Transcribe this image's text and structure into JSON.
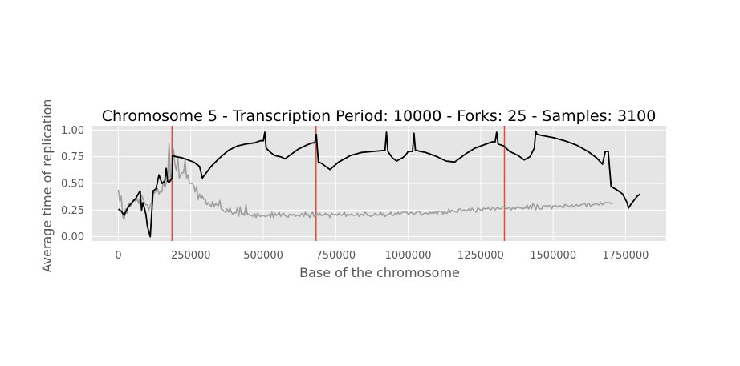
{
  "chart_data": {
    "type": "line",
    "title": "Chromosome 5 - Transcription Period: 10000 - Forks: 25 - Samples: 3100",
    "xlabel": "Base of the chromosome",
    "ylabel": "Average time of replication",
    "xlim": [
      -90000,
      1890000
    ],
    "ylim": [
      -0.04,
      1.04
    ],
    "x_ticks": [
      0,
      250000,
      500000,
      750000,
      1000000,
      1250000,
      1500000,
      1750000
    ],
    "y_ticks": [
      0.0,
      0.25,
      0.5,
      0.75,
      1.0
    ],
    "x_tick_labels": [
      "0",
      "250000",
      "500000",
      "750000",
      "1000000",
      "1250000",
      "1500000",
      "1750000"
    ],
    "y_tick_labels": [
      "0.00",
      "0.25",
      "0.50",
      "0.75",
      "1.00"
    ],
    "grid": true,
    "style": "ggplot",
    "colors": {
      "background": "#e5e5e5",
      "grid": "#ffffff",
      "model_line": "#000000",
      "sample_line": "#9e9e9e",
      "origin_line": "#e24a33"
    },
    "vertical_lines": [
      185000,
      682000,
      1332000
    ],
    "series": [
      {
        "role": "model",
        "x": [
          0,
          10000,
          20000,
          30000,
          40000,
          60000,
          75000,
          80000,
          85000,
          95000,
          100000,
          110000,
          120000,
          130000,
          140000,
          150000,
          160000,
          165000,
          170000,
          175000,
          185000,
          187000,
          200000,
          220000,
          240000,
          260000,
          270000,
          280000,
          290000,
          295000,
          320000,
          350000,
          380000,
          410000,
          440000,
          470000,
          490000,
          500000,
          505000,
          510000,
          525000,
          540000,
          560000,
          575000,
          590000,
          620000,
          650000,
          670000,
          678000,
          683000,
          690000,
          700000,
          715000,
          730000,
          760000,
          800000,
          840000,
          880000,
          920000,
          925000,
          930000,
          935000,
          940000,
          945000,
          960000,
          980000,
          990000,
          1000000,
          1015000,
          1020000,
          1025000,
          1030000,
          1040000,
          1060000,
          1080000,
          1100000,
          1130000,
          1160000,
          1180000,
          1200000,
          1230000,
          1260000,
          1290000,
          1300000,
          1305000,
          1310000,
          1330000,
          1350000,
          1380000,
          1400000,
          1420000,
          1435000,
          1440000,
          1445000,
          1460000,
          1500000,
          1540000,
          1580000,
          1620000,
          1650000,
          1670000,
          1680000,
          1690000,
          1700000,
          1720000,
          1740000,
          1755000,
          1760000,
          1770000,
          1790000,
          1800000
        ],
        "y": [
          0.26,
          0.24,
          0.2,
          0.26,
          0.3,
          0.36,
          0.43,
          0.25,
          0.32,
          0.21,
          0.1,
          0.0,
          0.43,
          0.45,
          0.58,
          0.5,
          0.52,
          0.64,
          0.52,
          0.51,
          0.55,
          0.76,
          0.75,
          0.74,
          0.72,
          0.7,
          0.68,
          0.66,
          0.55,
          0.57,
          0.66,
          0.74,
          0.81,
          0.85,
          0.87,
          0.88,
          0.9,
          0.9,
          0.98,
          0.83,
          0.79,
          0.76,
          0.75,
          0.73,
          0.76,
          0.82,
          0.86,
          0.88,
          0.88,
          0.96,
          0.7,
          0.69,
          0.66,
          0.63,
          0.7,
          0.76,
          0.79,
          0.8,
          0.81,
          0.98,
          0.8,
          0.78,
          0.76,
          0.74,
          0.71,
          0.74,
          0.76,
          0.8,
          0.8,
          0.97,
          0.81,
          0.81,
          0.8,
          0.79,
          0.77,
          0.75,
          0.71,
          0.7,
          0.74,
          0.78,
          0.83,
          0.86,
          0.89,
          0.89,
          0.98,
          0.87,
          0.85,
          0.8,
          0.76,
          0.72,
          0.75,
          0.83,
          0.99,
          0.96,
          0.95,
          0.93,
          0.9,
          0.86,
          0.8,
          0.74,
          0.68,
          0.8,
          0.8,
          0.47,
          0.44,
          0.4,
          0.32,
          0.27,
          0.31,
          0.38,
          0.4
        ]
      },
      {
        "role": "samples",
        "x_start": 0,
        "x_step": 5000,
        "y": [
          0.44,
          0.33,
          0.38,
          0.19,
          0.16,
          0.26,
          0.22,
          0.32,
          0.28,
          0.3,
          0.34,
          0.35,
          0.33,
          0.36,
          0.31,
          0.37,
          0.39,
          0.36,
          0.32,
          0.3,
          0.3,
          0.25,
          0.29,
          0.33,
          0.43,
          0.41,
          0.43,
          0.45,
          0.4,
          0.43,
          0.42,
          0.52,
          0.46,
          0.5,
          0.55,
          0.88,
          0.52,
          0.6,
          0.82,
          0.68,
          0.62,
          0.75,
          0.55,
          0.58,
          0.6,
          0.6,
          0.72,
          0.55,
          0.58,
          0.5,
          0.5,
          0.5,
          0.48,
          0.42,
          0.47,
          0.35,
          0.4,
          0.36,
          0.38,
          0.35,
          0.35,
          0.3,
          0.32,
          0.3,
          0.28,
          0.33,
          0.28,
          0.31,
          0.3,
          0.29,
          0.34,
          0.26,
          0.25,
          0.24,
          0.23,
          0.26,
          0.23,
          0.27,
          0.23,
          0.21,
          0.23,
          0.22,
          0.27,
          0.19,
          0.28,
          0.21,
          0.22,
          0.2,
          0.3,
          0.21,
          0.21,
          0.2,
          0.2,
          0.19,
          0.22,
          0.18,
          0.22,
          0.2,
          0.19,
          0.2,
          0.2,
          0.19,
          0.19,
          0.2,
          0.21,
          0.18,
          0.23,
          0.18,
          0.22,
          0.2,
          0.21,
          0.23,
          0.19,
          0.21,
          0.22,
          0.2,
          0.19,
          0.18,
          0.21,
          0.21,
          0.2,
          0.21,
          0.19,
          0.2,
          0.2,
          0.19,
          0.21,
          0.22,
          0.19,
          0.23,
          0.2,
          0.21,
          0.18,
          0.21,
          0.23,
          0.19,
          0.2,
          0.22,
          0.2,
          0.22,
          0.2,
          0.2,
          0.21,
          0.22,
          0.2,
          0.21,
          0.18,
          0.22,
          0.21,
          0.21,
          0.21,
          0.2,
          0.22,
          0.21,
          0.2,
          0.21,
          0.23,
          0.19,
          0.21,
          0.2,
          0.21,
          0.21,
          0.2,
          0.2,
          0.2,
          0.22,
          0.19,
          0.21,
          0.21,
          0.2,
          0.23,
          0.22,
          0.2,
          0.2,
          0.19,
          0.2,
          0.2,
          0.22,
          0.21,
          0.2,
          0.21,
          0.23,
          0.2,
          0.22,
          0.19,
          0.2,
          0.21,
          0.21,
          0.23,
          0.2,
          0.2,
          0.22,
          0.21,
          0.23,
          0.21,
          0.22,
          0.23,
          0.23,
          0.23,
          0.23,
          0.21,
          0.22,
          0.23,
          0.22,
          0.21,
          0.22,
          0.23,
          0.24,
          0.23,
          0.2,
          0.21,
          0.22,
          0.22,
          0.22,
          0.21,
          0.23,
          0.22,
          0.23,
          0.22,
          0.24,
          0.21,
          0.24,
          0.24,
          0.24,
          0.21,
          0.24,
          0.22,
          0.22,
          0.26,
          0.23,
          0.25,
          0.24,
          0.24,
          0.23,
          0.23,
          0.26,
          0.26,
          0.24,
          0.25,
          0.25,
          0.24,
          0.25,
          0.26,
          0.24,
          0.27,
          0.25,
          0.24,
          0.23,
          0.27,
          0.26,
          0.25,
          0.24,
          0.27,
          0.26,
          0.26,
          0.27,
          0.26,
          0.25,
          0.27,
          0.27,
          0.25,
          0.27,
          0.28,
          0.26,
          0.26,
          0.28,
          0.28,
          0.27,
          0.26,
          0.27,
          0.27,
          0.25,
          0.27,
          0.27,
          0.26,
          0.28,
          0.28,
          0.27,
          0.27,
          0.26,
          0.27,
          0.27,
          0.3,
          0.26,
          0.29,
          0.26,
          0.31,
          0.29,
          0.25,
          0.3,
          0.27,
          0.26,
          0.26,
          0.29,
          0.29,
          0.29,
          0.29,
          0.29,
          0.29,
          0.26,
          0.29,
          0.29,
          0.29,
          0.28,
          0.29,
          0.29,
          0.28,
          0.27,
          0.3,
          0.3,
          0.29,
          0.28,
          0.29,
          0.3,
          0.28,
          0.29,
          0.3,
          0.29,
          0.29,
          0.3,
          0.3,
          0.31,
          0.31,
          0.28,
          0.31,
          0.31,
          0.28,
          0.3,
          0.3,
          0.31,
          0.31,
          0.3,
          0.3,
          0.32,
          0.3,
          0.31,
          0.32,
          0.32,
          0.32,
          0.32,
          0.31,
          0.31
        ]
      }
    ]
  }
}
